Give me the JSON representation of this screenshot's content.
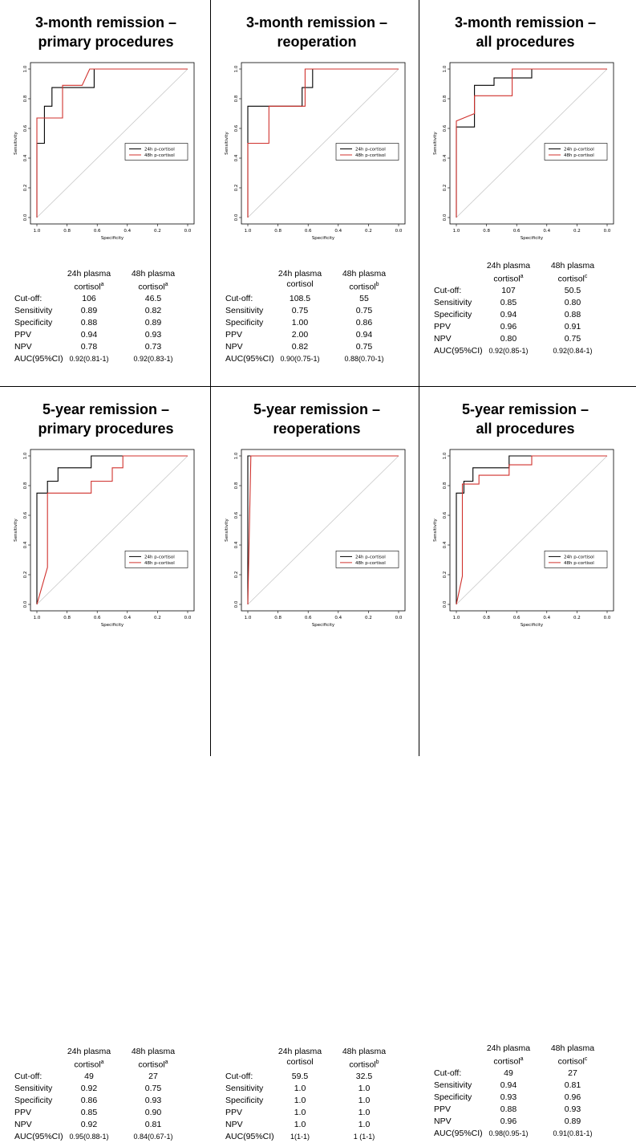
{
  "chart_data": [
    {
      "type": "line",
      "title": "3-month remission – primary procedures",
      "title_lines": [
        "3-month remission –",
        "primary procedures"
      ],
      "xlabel": "Specificity",
      "ylabel": "Sensitivity",
      "xlim": [
        1.0,
        0.0
      ],
      "ylim": [
        0.0,
        1.0
      ],
      "xticks": [
        "1.0",
        "0.8",
        "0.6",
        "0.4",
        "0.2",
        "0.0"
      ],
      "yticks": [
        "0.0",
        "0.2",
        "0.4",
        "0.6",
        "0.8",
        "1.0"
      ],
      "legend_position": "center-right",
      "series": [
        {
          "name": "24h p-cortisol",
          "color": "#000000",
          "points": [
            [
              1.0,
              0.0
            ],
            [
              1.0,
              0.5
            ],
            [
              0.95,
              0.5
            ],
            [
              0.95,
              0.75
            ],
            [
              0.9,
              0.75
            ],
            [
              0.9,
              0.875
            ],
            [
              0.62,
              0.875
            ],
            [
              0.62,
              1.0
            ],
            [
              0.0,
              1.0
            ]
          ]
        },
        {
          "name": "48h p-cortisol",
          "color": "#d0312d",
          "points": [
            [
              1.0,
              0.0
            ],
            [
              1.0,
              0.67
            ],
            [
              0.83,
              0.67
            ],
            [
              0.83,
              0.89
            ],
            [
              0.78,
              0.89
            ],
            [
              0.7,
              0.89
            ],
            [
              0.65,
              1.0
            ],
            [
              0.0,
              1.0
            ]
          ]
        }
      ],
      "stats_header": {
        "c1": "24h plasma",
        "c1b": "cortisol",
        "c1sup": "a",
        "c2": "48h plasma",
        "c2b": "cortisol",
        "c2sup": "a"
      },
      "stats": [
        {
          "label": "Cut-off:",
          "v1": "106",
          "v2": "46.5"
        },
        {
          "label": "Sensitivity",
          "v1": "0.89",
          "v2": "0.82"
        },
        {
          "label": "Specificity",
          "v1": "0.88",
          "v2": "0.89"
        },
        {
          "label": "PPV",
          "v1": "0.94",
          "v2": "0.93"
        },
        {
          "label": "NPV",
          "v1": "0.78",
          "v2": "0.73"
        },
        {
          "label": "AUC(95%CI)",
          "v1": "0.92(0.81-1)",
          "v2": "0.92(0.83-1)"
        }
      ]
    },
    {
      "type": "line",
      "title": "3-month remission – reoperation",
      "title_lines": [
        "3-month remission –",
        "reoperation"
      ],
      "xlabel": "Specificity",
      "ylabel": "Sensitivity",
      "xlim": [
        1.0,
        0.0
      ],
      "ylim": [
        0.0,
        1.0
      ],
      "xticks": [
        "1.0",
        "0.8",
        "0.6",
        "0.4",
        "0.2",
        "0.0"
      ],
      "yticks": [
        "0.0",
        "0.2",
        "0.4",
        "0.6",
        "0.8",
        "1.0"
      ],
      "legend_position": "center-right",
      "series": [
        {
          "name": "24h p-cortisol",
          "color": "#000000",
          "points": [
            [
              1.0,
              0.0
            ],
            [
              1.0,
              0.75
            ],
            [
              0.64,
              0.75
            ],
            [
              0.64,
              0.875
            ],
            [
              0.57,
              0.875
            ],
            [
              0.57,
              1.0
            ],
            [
              0.0,
              1.0
            ]
          ]
        },
        {
          "name": "48h p-cortisol",
          "color": "#d0312d",
          "points": [
            [
              1.0,
              0.0
            ],
            [
              1.0,
              0.5
            ],
            [
              0.86,
              0.5
            ],
            [
              0.86,
              0.75
            ],
            [
              0.62,
              0.75
            ],
            [
              0.62,
              1.0
            ],
            [
              0.0,
              1.0
            ]
          ]
        }
      ],
      "stats_header": {
        "c1": "24h plasma",
        "c1b": "cortisol",
        "c1sup": "",
        "c2": "48h plasma",
        "c2b": "cortisol",
        "c2sup": "b"
      },
      "stats": [
        {
          "label": "Cut-off:",
          "v1": "108.5",
          "v2": "55"
        },
        {
          "label": "Sensitivity",
          "v1": "0.75",
          "v2": "0.75"
        },
        {
          "label": "Specificity",
          "v1": "1.00",
          "v2": "0.86"
        },
        {
          "label": "PPV",
          "v1": "2.00",
          "v2": "0.94"
        },
        {
          "label": "NPV",
          "v1": "0.82",
          "v2": "0.75"
        },
        {
          "label": "AUC(95%CI)",
          "v1": "0.90(0.75-1)",
          "v2": "0.88(0.70-1)"
        }
      ]
    },
    {
      "type": "line",
      "title": "3-month remission – all procedures",
      "title_lines": [
        "3-month remission –",
        "all procedures"
      ],
      "xlabel": "Specificity",
      "ylabel": "Sensitivity",
      "xlim": [
        1.0,
        0.0
      ],
      "ylim": [
        0.0,
        1.0
      ],
      "xticks": [
        "1.0",
        "0.8",
        "0.6",
        "0.4",
        "0.2",
        "0.0"
      ],
      "yticks": [
        "0.0",
        "0.2",
        "0.4",
        "0.6",
        "0.8",
        "1.0"
      ],
      "legend_position": "center-right",
      "series": [
        {
          "name": "24h p-cortisol",
          "color": "#000000",
          "points": [
            [
              1.0,
              0.0
            ],
            [
              1.0,
              0.61
            ],
            [
              0.88,
              0.61
            ],
            [
              0.88,
              0.89
            ],
            [
              0.75,
              0.89
            ],
            [
              0.75,
              0.94
            ],
            [
              0.5,
              0.94
            ],
            [
              0.5,
              1.0
            ],
            [
              0.0,
              1.0
            ]
          ]
        },
        {
          "name": "48h p-cortisol",
          "color": "#d0312d",
          "points": [
            [
              1.0,
              0.0
            ],
            [
              1.0,
              0.65
            ],
            [
              0.88,
              0.7
            ],
            [
              0.88,
              0.82
            ],
            [
              0.63,
              0.82
            ],
            [
              0.63,
              1.0
            ],
            [
              0.0,
              1.0
            ]
          ]
        }
      ],
      "stats_header": {
        "c1": "24h plasma",
        "c1b": "cortisol",
        "c1sup": "a",
        "c2": "48h plasma",
        "c2b": "cortisol",
        "c2sup": "c"
      },
      "stats": [
        {
          "label": "Cut-off:",
          "v1": "107",
          "v2": "50.5"
        },
        {
          "label": "Sensitivity",
          "v1": "0.85",
          "v2": "0.80"
        },
        {
          "label": "Specificity",
          "v1": "0.94",
          "v2": "0.88"
        },
        {
          "label": "PPV",
          "v1": "0.96",
          "v2": "0.91"
        },
        {
          "label": "NPV",
          "v1": "0.80",
          "v2": "0.75"
        },
        {
          "label": "AUC(95%CI)",
          "v1": "0.92(0.85-1)",
          "v2": "0.92(0.84-1)"
        }
      ]
    },
    {
      "type": "line",
      "title": "5-year remission – primary procedures",
      "title_lines": [
        "5-year remission –",
        "primary procedures"
      ],
      "xlabel": "Specificity",
      "ylabel": "Sensitivity",
      "xlim": [
        1.0,
        0.0
      ],
      "ylim": [
        0.0,
        1.0
      ],
      "xticks": [
        "1.0",
        "0.8",
        "0.6",
        "0.4",
        "0.2",
        "0.0"
      ],
      "yticks": [
        "0.0",
        "0.2",
        "0.4",
        "0.6",
        "0.8",
        "1.0"
      ],
      "legend_position": "bottom-right",
      "series": [
        {
          "name": "24h p-cortisol",
          "color": "#000000",
          "points": [
            [
              1.0,
              0.0
            ],
            [
              1.0,
              0.75
            ],
            [
              0.93,
              0.75
            ],
            [
              0.93,
              0.83
            ],
            [
              0.86,
              0.83
            ],
            [
              0.86,
              0.92
            ],
            [
              0.64,
              0.92
            ],
            [
              0.64,
              1.0
            ],
            [
              0.0,
              1.0
            ]
          ]
        },
        {
          "name": "48h p-cortisol",
          "color": "#d0312d",
          "points": [
            [
              1.0,
              0.0
            ],
            [
              0.93,
              0.25
            ],
            [
              0.93,
              0.75
            ],
            [
              0.64,
              0.75
            ],
            [
              0.64,
              0.83
            ],
            [
              0.5,
              0.83
            ],
            [
              0.5,
              0.92
            ],
            [
              0.43,
              0.92
            ],
            [
              0.43,
              1.0
            ],
            [
              0.0,
              1.0
            ]
          ]
        }
      ],
      "stats_header": {
        "c1": "24h plasma",
        "c1b": "cortisol",
        "c1sup": "a",
        "c2": "48h plasma",
        "c2b": "cortisol",
        "c2sup": "a"
      },
      "stats": [
        {
          "label": "Cut-off:",
          "v1": "49",
          "v2": "27"
        },
        {
          "label": "Sensitivity",
          "v1": "0.92",
          "v2": "0.75"
        },
        {
          "label": "Specificity",
          "v1": "0.86",
          "v2": "0.93"
        },
        {
          "label": "PPV",
          "v1": "0.85",
          "v2": "0.90"
        },
        {
          "label": "NPV",
          "v1": "0.92",
          "v2": "0.81"
        },
        {
          "label": "AUC(95%CI)",
          "v1": "0.95(0.88-1)",
          "v2": "0.84(0.67-1)"
        }
      ]
    },
    {
      "type": "line",
      "title": "5-year remission – reoperations",
      "title_lines": [
        "5-year remission –",
        "reoperations"
      ],
      "xlabel": "Specificity",
      "ylabel": "Sensitivity",
      "xlim": [
        1.0,
        0.0
      ],
      "ylim": [
        0.0,
        1.0
      ],
      "xticks": [
        "1.0",
        "0.8",
        "0.6",
        "0.4",
        "0.2",
        "0.0"
      ],
      "yticks": [
        "0.0",
        "0.2",
        "0.4",
        "0.6",
        "0.8",
        "1.0"
      ],
      "legend_position": "bottom-right",
      "series": [
        {
          "name": "24h p-cortisol",
          "color": "#000000",
          "points": [
            [
              1.0,
              0.0
            ],
            [
              1.0,
              1.0
            ],
            [
              0.0,
              1.0
            ]
          ]
        },
        {
          "name": "48h p-cortisol",
          "color": "#d0312d",
          "points": [
            [
              1.0,
              0.0
            ],
            [
              0.98,
              1.0
            ],
            [
              0.0,
              1.0
            ]
          ]
        }
      ],
      "stats_header": {
        "c1": "24h plasma",
        "c1b": "cortisol",
        "c1sup": "",
        "c2": "48h plasma",
        "c2b": "cortisol",
        "c2sup": "b"
      },
      "stats": [
        {
          "label": "Cut-off:",
          "v1": "59.5",
          "v2": "32.5"
        },
        {
          "label": "Sensitivity",
          "v1": "1.0",
          "v2": "1.0"
        },
        {
          "label": "Specificity",
          "v1": "1.0",
          "v2": "1.0"
        },
        {
          "label": "PPV",
          "v1": "1.0",
          "v2": "1.0"
        },
        {
          "label": "NPV",
          "v1": "1.0",
          "v2": "1.0"
        },
        {
          "label": "AUC(95%CI)",
          "v1": "1(1-1)",
          "v2": "1 (1-1)"
        }
      ]
    },
    {
      "type": "line",
      "title": "5-year remission – all procedures",
      "title_lines": [
        "5-year remission –",
        "all procedures"
      ],
      "xlabel": "Specificity",
      "ylabel": "Sensitivity",
      "xlim": [
        1.0,
        0.0
      ],
      "ylim": [
        0.0,
        1.0
      ],
      "xticks": [
        "1.0",
        "0.8",
        "0.6",
        "0.4",
        "0.2",
        "0.0"
      ],
      "yticks": [
        "0.0",
        "0.2",
        "0.4",
        "0.6",
        "0.8",
        "1.0"
      ],
      "legend_position": "bottom-right",
      "series": [
        {
          "name": "24h p-cortisol",
          "color": "#000000",
          "points": [
            [
              1.0,
              0.0
            ],
            [
              1.0,
              0.75
            ],
            [
              0.95,
              0.75
            ],
            [
              0.95,
              0.83
            ],
            [
              0.89,
              0.83
            ],
            [
              0.89,
              0.92
            ],
            [
              0.65,
              0.92
            ],
            [
              0.65,
              1.0
            ],
            [
              0.0,
              1.0
            ]
          ]
        },
        {
          "name": "48h p-cortisol",
          "color": "#d0312d",
          "points": [
            [
              1.0,
              0.0
            ],
            [
              0.96,
              0.19
            ],
            [
              0.96,
              0.81
            ],
            [
              0.85,
              0.81
            ],
            [
              0.85,
              0.87
            ],
            [
              0.65,
              0.87
            ],
            [
              0.65,
              0.94
            ],
            [
              0.5,
              0.94
            ],
            [
              0.5,
              1.0
            ],
            [
              0.0,
              1.0
            ]
          ]
        }
      ],
      "stats_header": {
        "c1": "24h plasma",
        "c1b": "cortisol",
        "c1sup": "a",
        "c2": "48h plasma",
        "c2b": "cortisol",
        "c2sup": "c"
      },
      "stats": [
        {
          "label": "Cut-off:",
          "v1": "49",
          "v2": "27"
        },
        {
          "label": "Sensitivity",
          "v1": "0.94",
          "v2": "0.81"
        },
        {
          "label": "Specificity",
          "v1": "0.93",
          "v2": "0.96"
        },
        {
          "label": "PPV",
          "v1": "0.88",
          "v2": "0.93"
        },
        {
          "label": "NPV",
          "v1": "0.96",
          "v2": "0.89"
        },
        {
          "label": "AUC(95%CI)",
          "v1": "0.98(0.95-1)",
          "v2": "0.91(0.81-1)"
        }
      ]
    }
  ]
}
